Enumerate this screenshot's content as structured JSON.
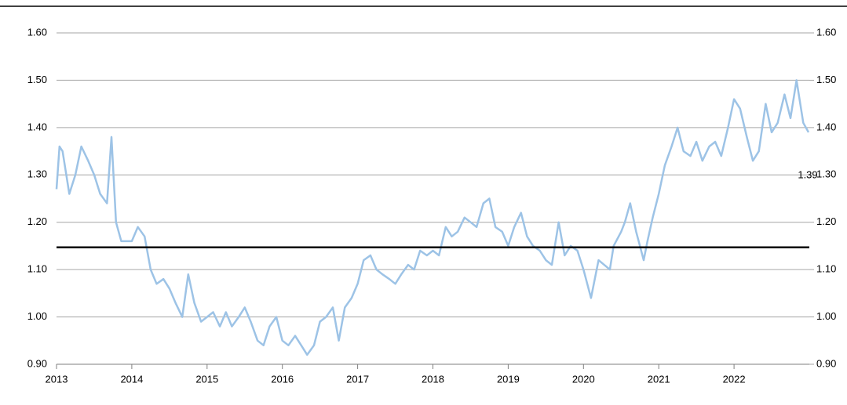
{
  "chart_data": {
    "type": "line",
    "annotation": "1.39",
    "reference_line": 1.147,
    "xlim": [
      2013,
      2023
    ],
    "xticks": [
      2013,
      2014,
      2015,
      2016,
      2017,
      2018,
      2019,
      2020,
      2021,
      2022
    ],
    "ylim": [
      0.9,
      1.6
    ],
    "yticks": [
      {
        "value": 0.9,
        "label": "0.90"
      },
      {
        "value": 1.0,
        "label": "1.00"
      },
      {
        "value": 1.1,
        "label": "1.10"
      },
      {
        "value": 1.2,
        "label": "1.20"
      },
      {
        "value": 1.3,
        "label": "1.30"
      },
      {
        "value": 1.4,
        "label": "1.40"
      },
      {
        "value": 1.5,
        "label": "1.50"
      },
      {
        "value": 1.6,
        "label": "1.60"
      }
    ],
    "y2lim": [
      0.9,
      1.6
    ],
    "y2ticks": [
      {
        "value": 0.9,
        "label": "0.90"
      },
      {
        "value": 1.0,
        "label": "1.00"
      },
      {
        "value": 1.1,
        "label": "1.10"
      },
      {
        "value": 1.2,
        "label": "1.20"
      },
      {
        "value": 1.3,
        "label": "1.30"
      },
      {
        "value": 1.4,
        "label": "1.40"
      },
      {
        "value": 1.5,
        "label": "1.50"
      },
      {
        "value": 1.6,
        "label": "1.60"
      }
    ],
    "grid": true,
    "color": "#9dc3e6",
    "x": [
      2013.0,
      2013.04,
      2013.08,
      2013.17,
      2013.25,
      2013.33,
      2013.42,
      2013.5,
      2013.58,
      2013.67,
      2013.73,
      2013.79,
      2013.86,
      2013.92,
      2014.0,
      2014.08,
      2014.17,
      2014.25,
      2014.33,
      2014.42,
      2014.5,
      2014.58,
      2014.67,
      2014.75,
      2014.83,
      2014.92,
      2015.0,
      2015.08,
      2015.17,
      2015.25,
      2015.33,
      2015.42,
      2015.5,
      2015.58,
      2015.67,
      2015.75,
      2015.83,
      2015.92,
      2016.0,
      2016.08,
      2016.17,
      2016.25,
      2016.33,
      2016.42,
      2016.5,
      2016.58,
      2016.67,
      2016.75,
      2016.83,
      2016.92,
      2017.0,
      2017.08,
      2017.17,
      2017.25,
      2017.33,
      2017.42,
      2017.5,
      2017.58,
      2017.67,
      2017.75,
      2017.83,
      2017.92,
      2018.0,
      2018.08,
      2018.17,
      2018.25,
      2018.33,
      2018.42,
      2018.5,
      2018.58,
      2018.67,
      2018.75,
      2018.83,
      2018.92,
      2019.0,
      2019.08,
      2019.17,
      2019.25,
      2019.33,
      2019.42,
      2019.5,
      2019.58,
      2019.67,
      2019.75,
      2019.83,
      2019.92,
      2020.0,
      2020.1,
      2020.2,
      2020.35,
      2020.4,
      2020.5,
      2020.55,
      2020.62,
      2020.7,
      2020.8,
      2020.85,
      2020.92,
      2021.0,
      2021.08,
      2021.17,
      2021.25,
      2021.33,
      2021.42,
      2021.5,
      2021.58,
      2021.67,
      2021.75,
      2021.83,
      2021.92,
      2022.0,
      2022.08,
      2022.17,
      2022.25,
      2022.33,
      2022.42,
      2022.5,
      2022.58,
      2022.67,
      2022.75,
      2022.83,
      2022.92,
      2022.99
    ],
    "values": [
      1.27,
      1.36,
      1.35,
      1.26,
      1.3,
      1.36,
      1.33,
      1.3,
      1.26,
      1.24,
      1.38,
      1.2,
      1.16,
      1.16,
      1.16,
      1.19,
      1.17,
      1.1,
      1.07,
      1.08,
      1.06,
      1.03,
      1.0,
      1.09,
      1.03,
      0.99,
      1.0,
      1.01,
      0.98,
      1.01,
      0.98,
      1.0,
      1.02,
      0.99,
      0.95,
      0.94,
      0.98,
      1.0,
      0.95,
      0.94,
      0.96,
      0.94,
      0.92,
      0.94,
      0.99,
      1.0,
      1.02,
      0.95,
      1.02,
      1.04,
      1.07,
      1.12,
      1.13,
      1.1,
      1.09,
      1.08,
      1.07,
      1.09,
      1.11,
      1.1,
      1.14,
      1.13,
      1.14,
      1.13,
      1.19,
      1.17,
      1.18,
      1.21,
      1.2,
      1.19,
      1.24,
      1.25,
      1.19,
      1.18,
      1.15,
      1.19,
      1.22,
      1.17,
      1.15,
      1.14,
      1.12,
      1.11,
      1.2,
      1.13,
      1.15,
      1.14,
      1.1,
      1.04,
      1.12,
      1.1,
      1.15,
      1.18,
      1.2,
      1.24,
      1.18,
      1.12,
      1.16,
      1.21,
      1.26,
      1.32,
      1.36,
      1.4,
      1.35,
      1.34,
      1.37,
      1.33,
      1.36,
      1.37,
      1.34,
      1.4,
      1.46,
      1.44,
      1.38,
      1.33,
      1.35,
      1.45,
      1.39,
      1.41,
      1.47,
      1.42,
      1.5,
      1.41,
      1.39
    ]
  }
}
